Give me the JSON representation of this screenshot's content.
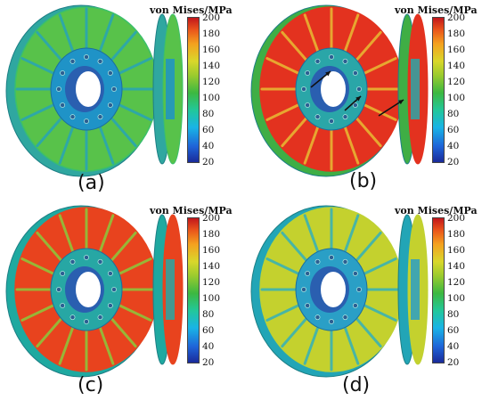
{
  "panels": [
    {
      "label": "(a)",
      "colorbar_title": "von Mises/MPa",
      "face_color": "#58c24a",
      "rim_color": "#2fa7a0",
      "spoke_color": "#2aa6b0",
      "hub_color": "#1f93c7",
      "edge_color": "#3bc06a"
    },
    {
      "label": "(b)",
      "colorbar_title": "von Mises/MPa",
      "face_color": "#e3321f",
      "rim_color": "#3fae45",
      "spoke_color": "#e8b432",
      "hub_color": "#2aa6a8",
      "edge_color": "#e3321f"
    },
    {
      "label": "(c)",
      "colorbar_title": "von Mises/MPa",
      "face_color": "#e8431e",
      "rim_color": "#1ea9a0",
      "spoke_color": "#8fc33a",
      "hub_color": "#27a7a4",
      "edge_color": "#e8431e"
    },
    {
      "label": "(d)",
      "colorbar_title": "von Mises/MPa",
      "face_color": "#c4d12e",
      "rim_color": "#22a5b6",
      "spoke_color": "#3bb2b2",
      "hub_color": "#2a9fc6",
      "edge_color": "#bfd233"
    }
  ],
  "colorbar_ticks": [
    "200",
    "180",
    "160",
    "140",
    "120",
    "100",
    "80",
    "60",
    "40",
    "20"
  ]
}
